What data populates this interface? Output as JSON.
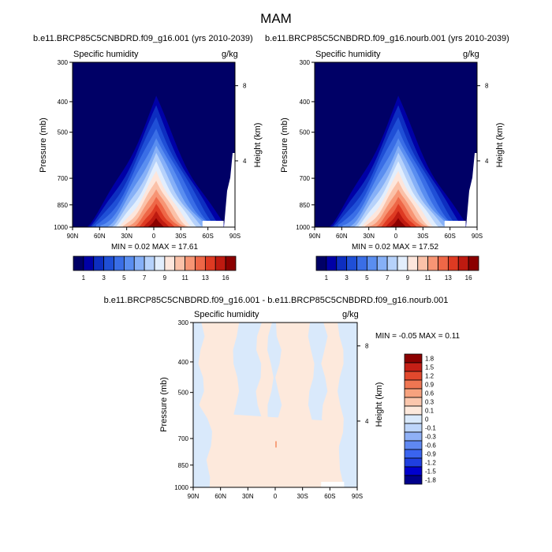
{
  "figure": {
    "title": "MAM"
  },
  "colors": {
    "q_levels": [
      "#000066",
      "#0000a6",
      "#0d2ec0",
      "#1f4fd6",
      "#3a6ee6",
      "#5a8ef0",
      "#86b0f7",
      "#b6d2fb",
      "#e2eefd",
      "#fde6dc",
      "#fbc1a8",
      "#f79574",
      "#ee6747",
      "#de3a22",
      "#be1a10",
      "#8b0000"
    ],
    "diff_levels": [
      "#00008b",
      "#0000cd",
      "#1f3fe0",
      "#3a64ef",
      "#5f88f2",
      "#8fb0f6",
      "#bdd5fa",
      "#d9e9fb",
      "#fde9dc",
      "#fbc7ad",
      "#f7a27e",
      "#ef7652",
      "#e2482d",
      "#c51f16",
      "#8b0000"
    ]
  },
  "chart_data": [
    {
      "id": "panel-1",
      "type": "contour",
      "title": "b.e11.BRCP85C5CNBDRD.f09_g16.001 (yrs 2010-2039)",
      "variable": "Specific humidity",
      "units": "g/kg",
      "ylabel": "Pressure (mb)",
      "y2label": "Height (km)",
      "x_ticks": [
        "90N",
        "60N",
        "30N",
        "0",
        "30S",
        "60S",
        "90S"
      ],
      "y_ticks": [
        "300",
        "400",
        "500",
        "700",
        "850",
        "1000"
      ],
      "y2_ticks": [
        "8",
        "4"
      ],
      "stats": "MIN =   0.02  MAX =   17.61",
      "min": 0.02,
      "max": 17.61,
      "colorbar_labels": [
        "1",
        "3",
        "5",
        "7",
        "9",
        "11",
        "13",
        "16"
      ]
    },
    {
      "id": "panel-2",
      "type": "contour",
      "title": "b.e11.BRCP85C5CNBDRD.f09_g16.nourb.001 (yrs 2010-2039)",
      "variable": "Specific humidity",
      "units": "g/kg",
      "ylabel": "Pressure (mb)",
      "y2label": "Height (km)",
      "x_ticks": [
        "90N",
        "60N",
        "30N",
        "0",
        "30S",
        "60S",
        "90S"
      ],
      "y_ticks": [
        "300",
        "400",
        "500",
        "700",
        "850",
        "1000"
      ],
      "y2_ticks": [
        "8",
        "4"
      ],
      "stats": "MIN =   0.02  MAX =   17.52",
      "min": 0.02,
      "max": 17.52,
      "colorbar_labels": [
        "1",
        "3",
        "5",
        "7",
        "9",
        "11",
        "13",
        "16"
      ]
    },
    {
      "id": "panel-diff",
      "type": "contour",
      "title": "b.e11.BRCP85C5CNBDRD.f09_g16.001 - b.e11.BRCP85C5CNBDRD.f09_g16.nourb.001",
      "variable": "Specific humidity",
      "units": "g/kg",
      "ylabel": "Pressure (mb)",
      "y2label": "Height (km)",
      "x_ticks": [
        "90N",
        "60N",
        "30N",
        "0",
        "30S",
        "60S",
        "90S"
      ],
      "y_ticks": [
        "300",
        "400",
        "500",
        "700",
        "850",
        "1000"
      ],
      "y2_ticks": [
        "8",
        "4"
      ],
      "stats": "MIN =  -0.05  MAX =   0.11",
      "min": -0.05,
      "max": 0.11,
      "colorbar_labels": [
        "1.8",
        "1.5",
        "1.2",
        "0.9",
        "0.6",
        "0.3",
        "0.1",
        "0",
        "-0.1",
        "-0.3",
        "-0.6",
        "-0.9",
        "-1.2",
        "-1.5",
        "-1.8"
      ]
    }
  ]
}
